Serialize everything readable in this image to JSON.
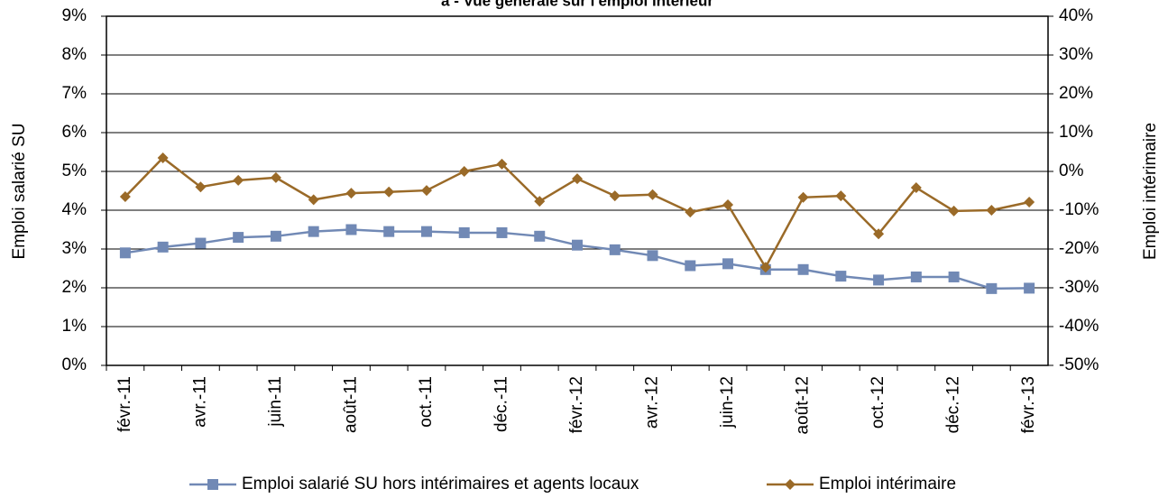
{
  "chart_data": {
    "type": "line",
    "title": "a - Vue générale sur l'emploi intérieur",
    "y_label": "Emploi salarié SU",
    "y2_label": "Emploi intérimaire",
    "categories": [
      "févr.-11",
      null,
      "avr.-11",
      null,
      "juin-11",
      null,
      "août-11",
      null,
      "oct.-11",
      null,
      "déc.-11",
      null,
      "févr.-12",
      null,
      "avr.-12",
      null,
      "juin-12",
      null,
      "août-12",
      null,
      "oct.-12",
      null,
      "déc.-12",
      null,
      "févr.-13"
    ],
    "ylim": [
      0,
      9
    ],
    "yticks": [
      {
        "value": 0,
        "label": "0%"
      },
      {
        "value": 1,
        "label": "1%"
      },
      {
        "value": 2,
        "label": "2%"
      },
      {
        "value": 3,
        "label": "3%"
      },
      {
        "value": 4,
        "label": "4%"
      },
      {
        "value": 5,
        "label": "5%"
      },
      {
        "value": 6,
        "label": "6%"
      },
      {
        "value": 7,
        "label": "7%"
      },
      {
        "value": 8,
        "label": "8%"
      },
      {
        "value": 9,
        "label": "9%"
      }
    ],
    "y2lim": [
      -50,
      40
    ],
    "y2ticks": [
      {
        "value": -50,
        "label": "-50%"
      },
      {
        "value": -40,
        "label": "-40%"
      },
      {
        "value": -30,
        "label": "-30%"
      },
      {
        "value": -20,
        "label": "-20%"
      },
      {
        "value": -10,
        "label": "-10%"
      },
      {
        "value": 0,
        "label": "0%"
      },
      {
        "value": 10,
        "label": "10%"
      },
      {
        "value": 20,
        "label": "20%"
      },
      {
        "value": 30,
        "label": "30%"
      },
      {
        "value": 40,
        "label": "40%"
      }
    ],
    "grid": true,
    "series": [
      {
        "name": "Emploi salarié SU hors intérimaires et agents locaux",
        "color": "#7189b5",
        "marker": "square",
        "values": [
          2.9,
          3.05,
          3.15,
          3.3,
          3.33,
          3.45,
          3.5,
          3.45,
          3.45,
          3.42,
          3.42,
          3.33,
          3.1,
          2.98,
          2.83,
          2.57,
          2.62,
          2.47,
          2.47,
          2.3,
          2.2,
          2.28,
          2.28,
          1.98,
          1.99
        ]
      },
      {
        "name": "Emploi intérimaire",
        "color": "#9a6a28",
        "marker": "diamond",
        "axis": "y2",
        "values": [
          -6.5,
          3.5,
          -4,
          -2.3,
          -1.6,
          -7.3,
          -5.6,
          -5.3,
          -4.9,
          0,
          1.9,
          -7.7,
          -1.9,
          -6.3,
          -6,
          -10.5,
          -8.6,
          -24.7,
          -6.7,
          -6.3,
          -16.1,
          -4.2,
          -10.2,
          -10,
          -7.9
        ]
      }
    ]
  }
}
